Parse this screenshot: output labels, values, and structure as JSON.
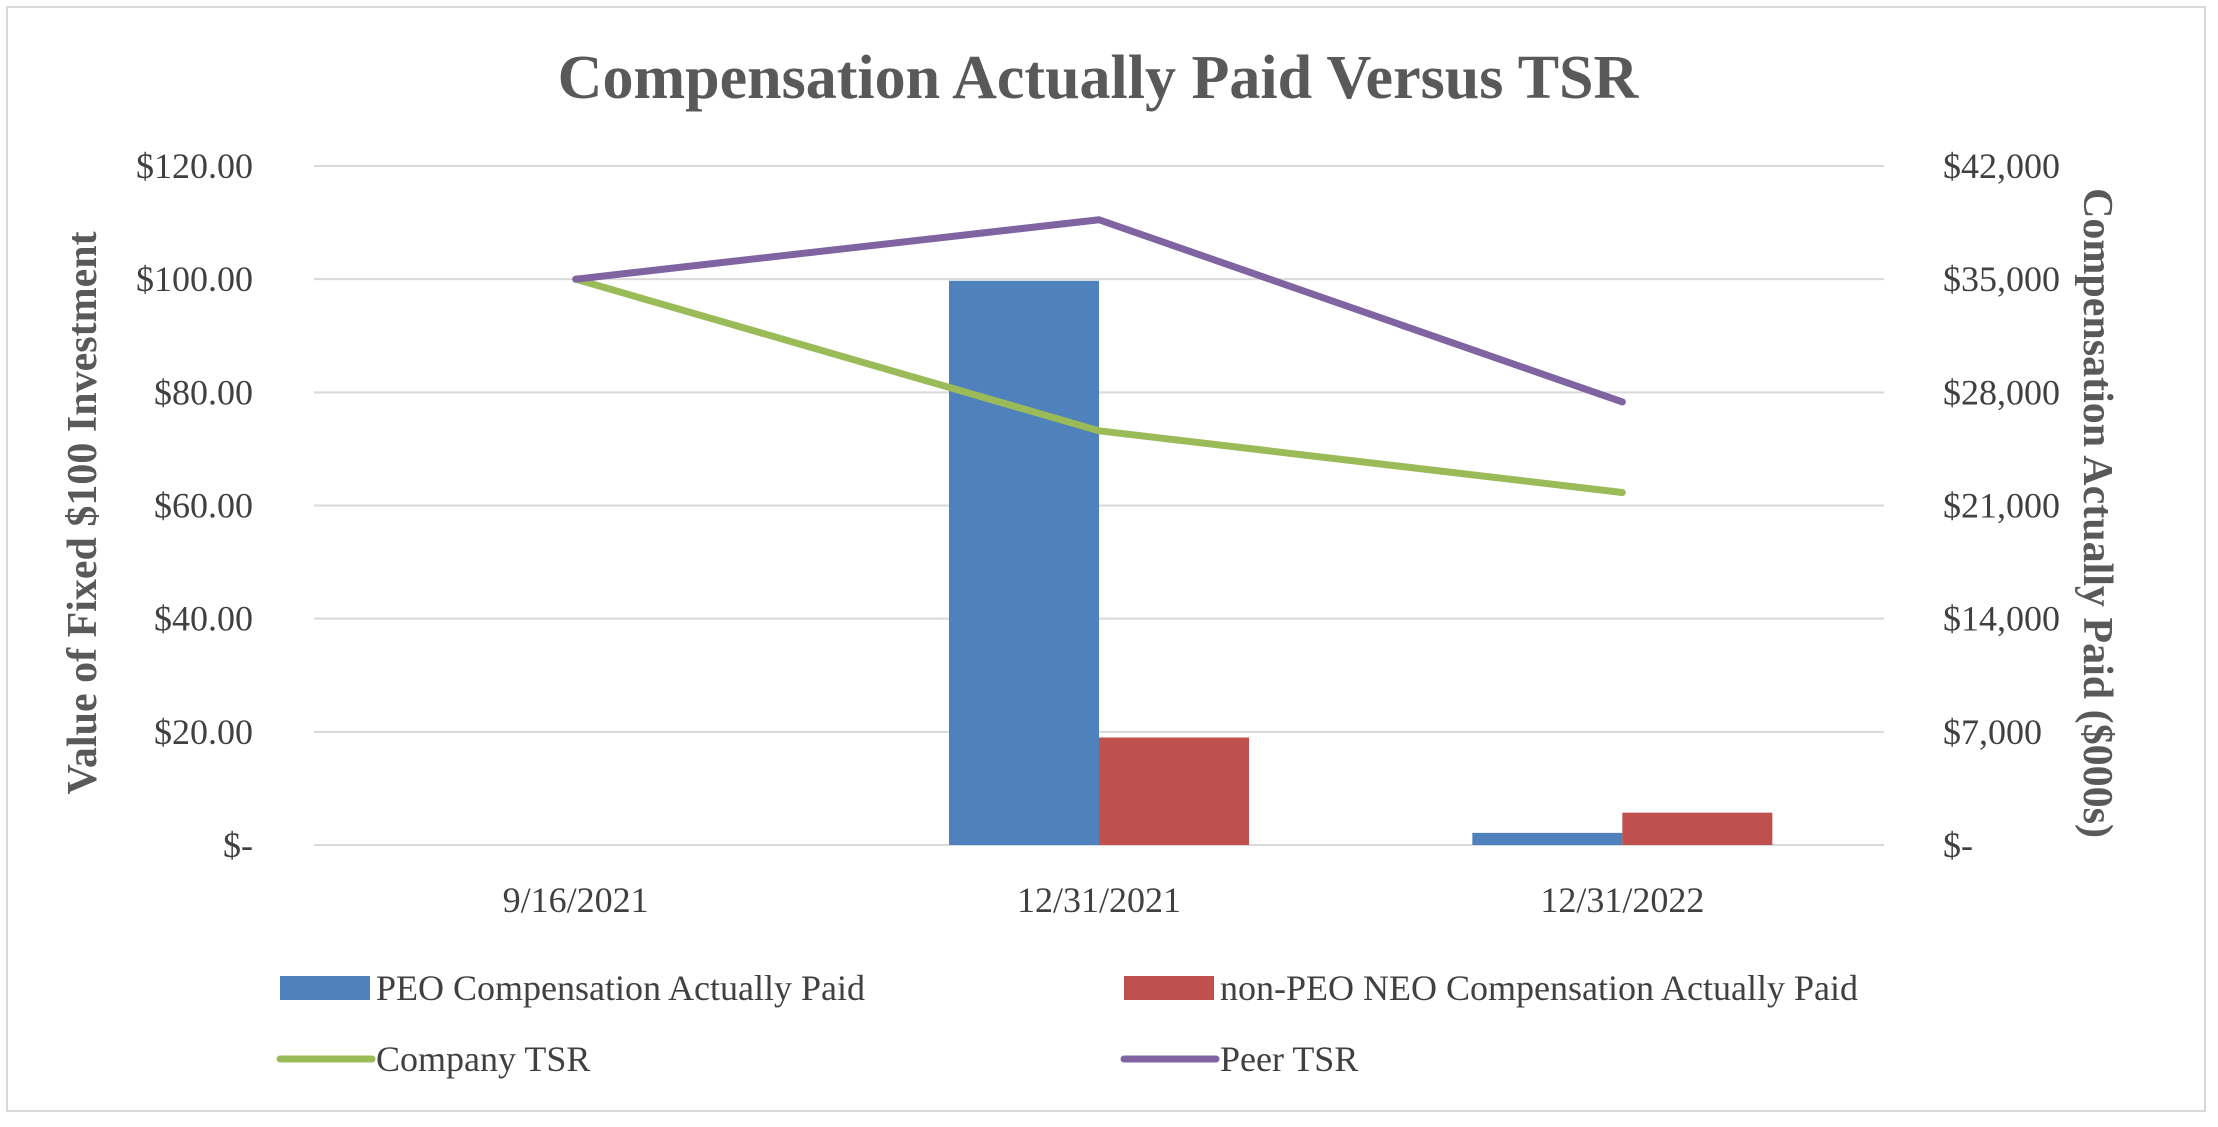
{
  "chart_data": {
    "type": "bar",
    "title": "Compensation Actually Paid Versus TSR",
    "categories": [
      "9/16/2021",
      "12/31/2021",
      "12/31/2022"
    ],
    "y_left": {
      "label": "Value of Fixed $100 Investment",
      "lim": [
        0,
        120
      ],
      "ticks": [
        0,
        20,
        40,
        60,
        80,
        100,
        120
      ],
      "tick_labels": [
        "$-",
        "$20.00",
        "$40.00",
        "$60.00",
        "$80.00",
        "$100.00",
        "$120.00"
      ]
    },
    "y_right": {
      "label": "Compensation Actually Paid ($000s)",
      "lim": [
        0,
        42000
      ],
      "ticks": [
        0,
        7000,
        14000,
        21000,
        28000,
        35000,
        42000
      ],
      "tick_labels": [
        "$-",
        "$7,000",
        "$14,000",
        "$21,000",
        "$28,000",
        "$35,000",
        "$42,000"
      ]
    },
    "series": [
      {
        "name": "PEO Compensation Actually Paid",
        "kind": "bar",
        "axis": "right",
        "color": "#4f81bd",
        "values": [
          0,
          34900,
          750
        ]
      },
      {
        "name": "non-PEO NEO Compensation Actually Paid",
        "kind": "bar",
        "axis": "right",
        "color": "#c0504d",
        "values": [
          0,
          6650,
          2000
        ]
      },
      {
        "name": "Company TSR",
        "kind": "line",
        "axis": "left",
        "color": "#9bbb59",
        "values": [
          100.0,
          73.2,
          62.3
        ]
      },
      {
        "name": "Peer TSR",
        "kind": "line",
        "axis": "left",
        "color": "#8064a2",
        "values": [
          100.0,
          110.5,
          78.3
        ]
      }
    ],
    "grid": true,
    "legend_position": "bottom"
  }
}
